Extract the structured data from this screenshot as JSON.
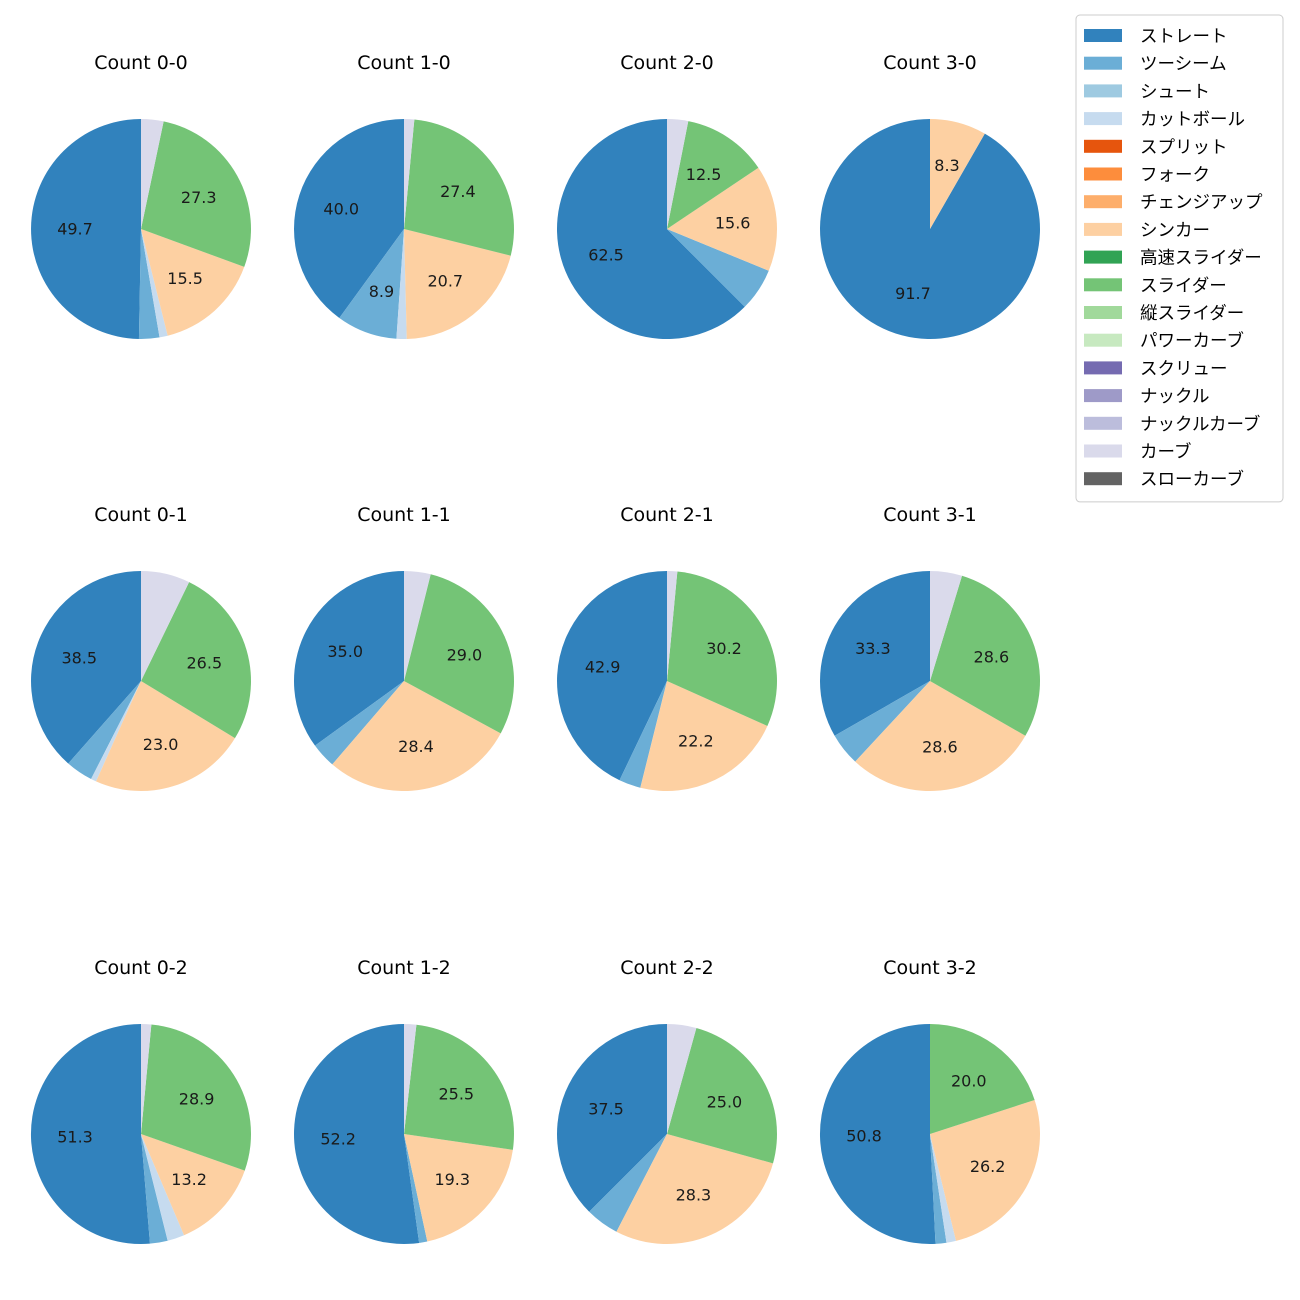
{
  "chart_data": {
    "type": "pie",
    "legend": {
      "position": "upper-right",
      "entries": [
        {
          "name": "ストレート",
          "color": "#3182bd"
        },
        {
          "name": "ツーシーム",
          "color": "#6baed6"
        },
        {
          "name": "シュート",
          "color": "#9ecae1"
        },
        {
          "name": "カットボール",
          "color": "#c6dbef"
        },
        {
          "name": "スプリット",
          "color": "#e6550d"
        },
        {
          "name": "フォーク",
          "color": "#fd8d3c"
        },
        {
          "name": "チェンジアップ",
          "color": "#fdae6b"
        },
        {
          "name": "シンカー",
          "color": "#fdd0a2"
        },
        {
          "name": "高速スライダー",
          "color": "#31a354"
        },
        {
          "name": "スライダー",
          "color": "#74c476"
        },
        {
          "name": "縦スライダー",
          "color": "#a1d99b"
        },
        {
          "name": "パワーカーブ",
          "color": "#c7e9c0"
        },
        {
          "name": "スクリュー",
          "color": "#756bb1"
        },
        {
          "name": "ナックル",
          "color": "#9e9ac8"
        },
        {
          "name": "ナックルカーブ",
          "color": "#bcbddc"
        },
        {
          "name": "カーブ",
          "color": "#dadaeb"
        },
        {
          "name": "スローカーブ",
          "color": "#636363"
        }
      ]
    },
    "pies": [
      {
        "title": "Count 0-0",
        "slices": [
          {
            "pitch": "ストレート",
            "value": 49.7,
            "label": "49.7"
          },
          {
            "pitch": "ツーシーム",
            "value": 3.0
          },
          {
            "pitch": "カットボール",
            "value": 1.2
          },
          {
            "pitch": "シンカー",
            "value": 15.5,
            "label": "15.5"
          },
          {
            "pitch": "スライダー",
            "value": 27.3,
            "label": "27.3"
          },
          {
            "pitch": "カーブ",
            "value": 3.3
          }
        ]
      },
      {
        "title": "Count 1-0",
        "slices": [
          {
            "pitch": "ストレート",
            "value": 40.0,
            "label": "40.0"
          },
          {
            "pitch": "ツーシーム",
            "value": 8.9,
            "label": "8.9"
          },
          {
            "pitch": "カットボール",
            "value": 1.5
          },
          {
            "pitch": "シンカー",
            "value": 20.7,
            "label": "20.7"
          },
          {
            "pitch": "スライダー",
            "value": 27.4,
            "label": "27.4"
          },
          {
            "pitch": "カーブ",
            "value": 1.5
          }
        ]
      },
      {
        "title": "Count 2-0",
        "slices": [
          {
            "pitch": "ストレート",
            "value": 62.5,
            "label": "62.5"
          },
          {
            "pitch": "ツーシーム",
            "value": 6.3
          },
          {
            "pitch": "シンカー",
            "value": 15.6,
            "label": "15.6"
          },
          {
            "pitch": "スライダー",
            "value": 12.5,
            "label": "12.5"
          },
          {
            "pitch": "カーブ",
            "value": 3.1
          }
        ]
      },
      {
        "title": "Count 3-0",
        "slices": [
          {
            "pitch": "ストレート",
            "value": 91.7,
            "label": "91.7"
          },
          {
            "pitch": "シンカー",
            "value": 8.3,
            "label": "8.3"
          }
        ]
      },
      {
        "title": "Count 0-1",
        "slices": [
          {
            "pitch": "ストレート",
            "value": 38.5,
            "label": "38.5"
          },
          {
            "pitch": "ツーシーム",
            "value": 4.0
          },
          {
            "pitch": "カットボール",
            "value": 0.8
          },
          {
            "pitch": "シンカー",
            "value": 23.0,
            "label": "23.0"
          },
          {
            "pitch": "スライダー",
            "value": 26.5,
            "label": "26.5"
          },
          {
            "pitch": "カーブ",
            "value": 7.2
          }
        ]
      },
      {
        "title": "Count 1-1",
        "slices": [
          {
            "pitch": "ストレート",
            "value": 35.0,
            "label": "35.0"
          },
          {
            "pitch": "ツーシーム",
            "value": 3.7
          },
          {
            "pitch": "シンカー",
            "value": 28.4,
            "label": "28.4"
          },
          {
            "pitch": "スライダー",
            "value": 29.0,
            "label": "29.0"
          },
          {
            "pitch": "カーブ",
            "value": 3.9
          }
        ]
      },
      {
        "title": "Count 2-1",
        "slices": [
          {
            "pitch": "ストレート",
            "value": 42.9,
            "label": "42.9"
          },
          {
            "pitch": "ツーシーム",
            "value": 3.2
          },
          {
            "pitch": "シンカー",
            "value": 22.2,
            "label": "22.2"
          },
          {
            "pitch": "スライダー",
            "value": 30.2,
            "label": "30.2"
          },
          {
            "pitch": "カーブ",
            "value": 1.5
          }
        ]
      },
      {
        "title": "Count 3-1",
        "slices": [
          {
            "pitch": "ストレート",
            "value": 33.3,
            "label": "33.3"
          },
          {
            "pitch": "ツーシーム",
            "value": 4.8
          },
          {
            "pitch": "シンカー",
            "value": 28.6,
            "label": "28.6"
          },
          {
            "pitch": "スライダー",
            "value": 28.6,
            "label": "28.6"
          },
          {
            "pitch": "カーブ",
            "value": 4.7
          }
        ]
      },
      {
        "title": "Count 0-2",
        "slices": [
          {
            "pitch": "ストレート",
            "value": 51.3,
            "label": "51.3"
          },
          {
            "pitch": "ツーシーム",
            "value": 2.6
          },
          {
            "pitch": "カットボール",
            "value": 2.5
          },
          {
            "pitch": "シンカー",
            "value": 13.2,
            "label": "13.2"
          },
          {
            "pitch": "スライダー",
            "value": 28.9,
            "label": "28.9"
          },
          {
            "pitch": "カーブ",
            "value": 1.5
          }
        ]
      },
      {
        "title": "Count 1-2",
        "slices": [
          {
            "pitch": "ストレート",
            "value": 52.2,
            "label": "52.2"
          },
          {
            "pitch": "ツーシーム",
            "value": 1.2
          },
          {
            "pitch": "シンカー",
            "value": 19.3,
            "label": "19.3"
          },
          {
            "pitch": "スライダー",
            "value": 25.5,
            "label": "25.5"
          },
          {
            "pitch": "カーブ",
            "value": 1.8
          }
        ]
      },
      {
        "title": "Count 2-2",
        "slices": [
          {
            "pitch": "ストレート",
            "value": 37.5,
            "label": "37.5"
          },
          {
            "pitch": "ツーシーム",
            "value": 4.9
          },
          {
            "pitch": "シンカー",
            "value": 28.3,
            "label": "28.3"
          },
          {
            "pitch": "スライダー",
            "value": 25.0,
            "label": "25.0"
          },
          {
            "pitch": "カーブ",
            "value": 4.3
          }
        ]
      },
      {
        "title": "Count 3-2",
        "slices": [
          {
            "pitch": "ストレート",
            "value": 50.8,
            "label": "50.8"
          },
          {
            "pitch": "ツーシーム",
            "value": 1.6
          },
          {
            "pitch": "カットボール",
            "value": 1.4
          },
          {
            "pitch": "シンカー",
            "value": 26.2,
            "label": "26.2"
          },
          {
            "pitch": "スライダー",
            "value": 20.0,
            "label": "20.0"
          }
        ]
      }
    ]
  }
}
